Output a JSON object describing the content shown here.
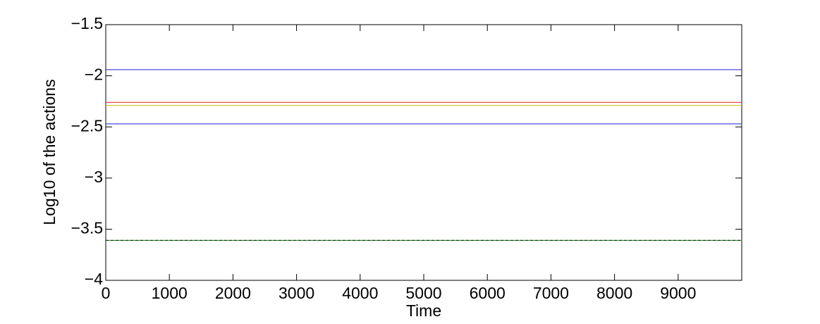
{
  "chart_data": {
    "type": "line",
    "xlabel": "Time",
    "ylabel": "Log10 of the actions",
    "x": [
      0,
      10000
    ],
    "series": [
      {
        "color": "#4b4bd8",
        "values": [
          -1.94,
          -1.94
        ]
      },
      {
        "color": "#e05050",
        "values": [
          -2.26,
          -2.26
        ]
      },
      {
        "color": "#d8c84a",
        "values": [
          -2.29,
          -2.29
        ]
      },
      {
        "color": "#4b4bd8",
        "values": [
          -2.47,
          -2.47
        ]
      },
      {
        "color": "#1fae1f",
        "values": [
          -3.61,
          -3.61
        ]
      },
      {
        "color": "#333333",
        "dash": true,
        "values": [
          -3.61,
          -3.61
        ]
      }
    ],
    "xlim": [
      0,
      10000
    ],
    "xticks": [
      0,
      1000,
      2000,
      3000,
      4000,
      5000,
      6000,
      7000,
      8000,
      9000
    ],
    "ylim": [
      -4,
      -1.5
    ],
    "yticks": [
      {
        "value": -4,
        "label": "−4"
      },
      {
        "value": -3.5,
        "label": "−3.5"
      },
      {
        "value": -3,
        "label": "−3"
      },
      {
        "value": -2.5,
        "label": "−2.5"
      },
      {
        "value": -2,
        "label": "−2"
      },
      {
        "value": -1.5,
        "label": "−1.5"
      }
    ],
    "grid": false
  }
}
